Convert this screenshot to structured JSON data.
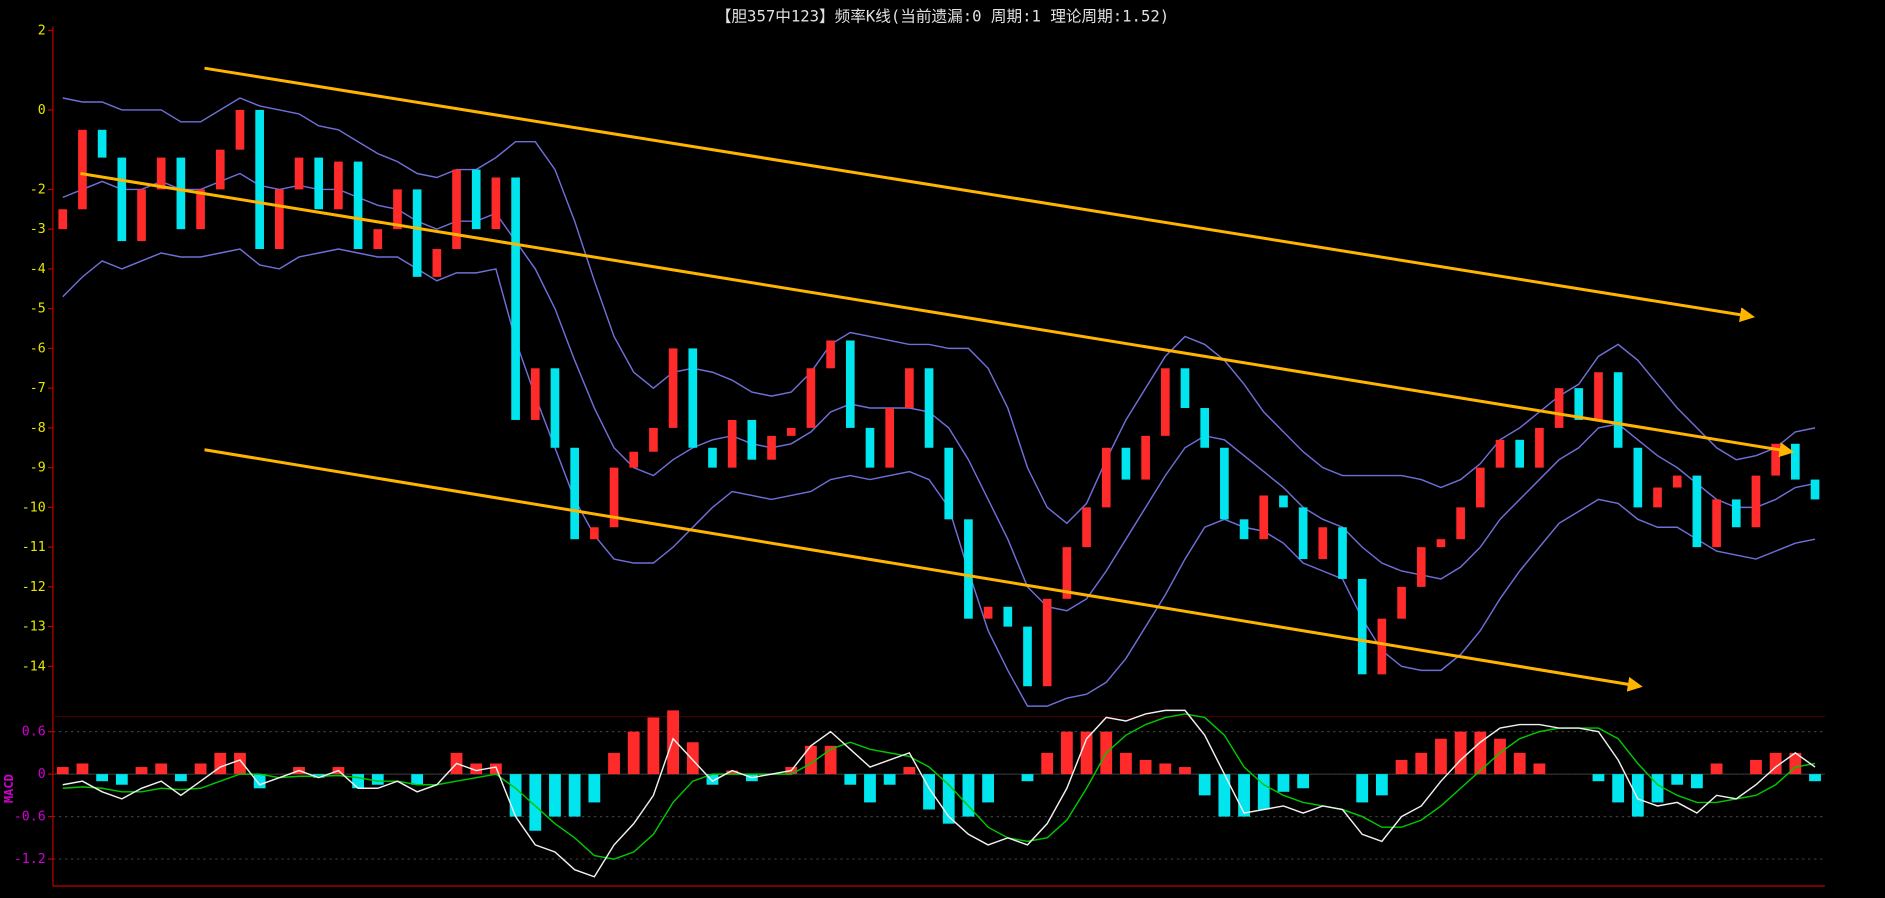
{
  "chart_data": [
    {
      "type": "candlestick",
      "title": "【胆357中123】频率K线(当前遗漏:0 周期:1 理论周期:1.52)",
      "ylim": [
        -15.2,
        2.1
      ],
      "yticks": [
        2,
        0,
        -2,
        -3,
        -4,
        -5,
        -6,
        -7,
        -8,
        -9,
        -10,
        -11,
        -12,
        -13,
        -14
      ],
      "tick_color": "#e6e600",
      "up_color": "#ff2a2a",
      "down_color": "#00e5ee",
      "band_color": "#6f6fd8",
      "trend_color": "#ffb400",
      "open": [
        -3,
        -2.5,
        -0.5,
        -1.2,
        -3.3,
        -2,
        -1.2,
        -3,
        -2,
        -1,
        0,
        -3.5,
        -2,
        -1.2,
        -2.5,
        -1.3,
        -3.5,
        -3,
        -2,
        -4.2,
        -3.5,
        -1.5,
        -3,
        -1.7,
        -7.8,
        -6.5,
        -8.5,
        -10.8,
        -10.5,
        -9,
        -8.6,
        -8,
        -6,
        -8.5,
        -9,
        -7.8,
        -8.8,
        -8.2,
        -8,
        -6.5,
        -5.8,
        -8,
        -9,
        -7.5,
        -6.5,
        -8.5,
        -10.3,
        -12.8,
        -12.5,
        -13,
        -14.5,
        -12.3,
        -11,
        -10,
        -8.5,
        -9.3,
        -8.2,
        -6.5,
        -7.5,
        -8.5,
        -10.3,
        -10.8,
        -9.7,
        -10,
        -11.3,
        -10.5,
        -11.8,
        -14.2,
        -12.8,
        -12,
        -11,
        -10.8,
        -10,
        -9,
        -8.3,
        -9,
        -8,
        -7,
        -7.8,
        -6.6,
        -8.5,
        -10,
        -9.5,
        -9.2,
        -11,
        -9.8,
        -10.5,
        -9.2,
        -8.4,
        -9.3
      ],
      "close": [
        -2.5,
        -0.5,
        -1.2,
        -3.3,
        -2,
        -1.2,
        -3,
        -2,
        -1,
        0,
        -3.5,
        -2,
        -1.2,
        -2.5,
        -1.3,
        -3.5,
        -3,
        -2,
        -4.2,
        -3.5,
        -1.5,
        -3,
        -1.7,
        -7.8,
        -6.5,
        -8.5,
        -10.8,
        -10.5,
        -9,
        -8.6,
        -8,
        -6,
        -8.5,
        -9,
        -7.8,
        -8.8,
        -8.2,
        -8,
        -6.5,
        -5.8,
        -8,
        -9,
        -7.5,
        -6.5,
        -8.5,
        -10.3,
        -12.8,
        -12.5,
        -13,
        -14.5,
        -12.3,
        -11,
        -10,
        -8.5,
        -9.3,
        -8.2,
        -6.5,
        -7.5,
        -8.5,
        -10.3,
        -10.8,
        -9.7,
        -10,
        -11.3,
        -10.5,
        -11.8,
        -14.2,
        -12.8,
        -12,
        -11,
        -10.8,
        -10,
        -9,
        -8.3,
        -9,
        -8,
        -7,
        -7.8,
        -6.6,
        -8.5,
        -10,
        -9.5,
        -9.2,
        -11,
        -9.8,
        -10.5,
        -9.2,
        -8.4,
        -9.3,
        -9.8
      ],
      "upper": [
        0.3,
        0.2,
        0.2,
        0,
        0,
        0,
        -0.3,
        -0.3,
        0,
        0.3,
        0.1,
        0,
        -0.1,
        -0.4,
        -0.5,
        -0.8,
        -1.1,
        -1.3,
        -1.6,
        -1.7,
        -1.5,
        -1.5,
        -1.2,
        -0.8,
        -0.8,
        -1.5,
        -2.8,
        -4.3,
        -5.7,
        -6.6,
        -7,
        -6.6,
        -6.5,
        -6.6,
        -6.8,
        -7.1,
        -7.2,
        -7.1,
        -6.6,
        -5.9,
        -5.6,
        -5.7,
        -5.8,
        -5.9,
        -5.9,
        -6,
        -6,
        -6.5,
        -7.5,
        -9,
        -10,
        -10.4,
        -9.9,
        -8.8,
        -7.8,
        -7,
        -6.2,
        -5.7,
        -5.9,
        -6.3,
        -6.9,
        -7.6,
        -8.1,
        -8.6,
        -9,
        -9.2,
        -9.2,
        -9.2,
        -9.2,
        -9.3,
        -9.5,
        -9.3,
        -8.9,
        -8.3,
        -8,
        -7.6,
        -7.2,
        -6.9,
        -6.2,
        -5.9,
        -6.3,
        -6.9,
        -7.5,
        -8,
        -8.5,
        -8.8,
        -8.7,
        -8.5,
        -8.1,
        -8
      ],
      "middle": [
        -2.2,
        -2,
        -1.8,
        -2,
        -2,
        -1.8,
        -2,
        -2,
        -1.8,
        -1.6,
        -1.9,
        -2,
        -1.9,
        -2,
        -2,
        -2.2,
        -2.4,
        -2.5,
        -2.8,
        -3,
        -2.8,
        -2.8,
        -2.6,
        -3.3,
        -4,
        -5,
        -6.3,
        -7.5,
        -8.5,
        -9,
        -9.2,
        -8.8,
        -8.5,
        -8.3,
        -8.2,
        -8.4,
        -8.5,
        -8.4,
        -8.1,
        -7.6,
        -7.4,
        -7.5,
        -7.5,
        -7.5,
        -7.6,
        -8,
        -8.8,
        -9.8,
        -10.8,
        -12,
        -12.5,
        -12.6,
        -12.3,
        -11.6,
        -10.8,
        -10,
        -9.2,
        -8.5,
        -8.2,
        -8.3,
        -8.7,
        -9.1,
        -9.5,
        -10,
        -10.3,
        -10.5,
        -11,
        -11.4,
        -11.6,
        -11.7,
        -11.8,
        -11.5,
        -11,
        -10.3,
        -9.8,
        -9.3,
        -8.8,
        -8.5,
        -8,
        -7.9,
        -8.3,
        -8.7,
        -9,
        -9.4,
        -9.8,
        -10,
        -10,
        -9.8,
        -9.5,
        -9.4
      ],
      "lower": [
        -4.7,
        -4.2,
        -3.8,
        -4,
        -3.8,
        -3.6,
        -3.7,
        -3.7,
        -3.6,
        -3.5,
        -3.9,
        -4,
        -3.7,
        -3.6,
        -3.5,
        -3.6,
        -3.7,
        -3.7,
        -4,
        -4.3,
        -4.1,
        -4.1,
        -4,
        -5.8,
        -7.2,
        -8.5,
        -9.8,
        -10.7,
        -11.3,
        -11.4,
        -11.4,
        -11,
        -10.5,
        -10,
        -9.6,
        -9.7,
        -9.8,
        -9.7,
        -9.6,
        -9.3,
        -9.2,
        -9.3,
        -9.2,
        -9.1,
        -9.3,
        -10,
        -11.6,
        -13.1,
        -14.1,
        -15,
        -15,
        -14.8,
        -14.7,
        -14.4,
        -13.8,
        -13,
        -12.2,
        -11.3,
        -10.5,
        -10.3,
        -10.5,
        -10.6,
        -10.9,
        -11.4,
        -11.6,
        -11.8,
        -12.8,
        -13.6,
        -14,
        -14.1,
        -14.1,
        -13.7,
        -13.1,
        -12.3,
        -11.6,
        -11,
        -10.4,
        -10.1,
        -9.8,
        -9.9,
        -10.3,
        -10.5,
        -10.5,
        -10.8,
        -11.1,
        -11.2,
        -11.3,
        -11.1,
        -10.9,
        -10.8
      ],
      "trend_lines": [
        {
          "x": [
            7.2,
            85.8
          ],
          "y": [
            1.05,
            -5.2
          ]
        },
        {
          "x": [
            0.9,
            87.8
          ],
          "y": [
            -1.6,
            -8.6
          ]
        },
        {
          "x": [
            7.2,
            80.1
          ],
          "y": [
            -8.55,
            -14.5
          ]
        }
      ]
    },
    {
      "type": "macd",
      "ylabel": "MACD",
      "ylim": [
        -1.58,
        0.78
      ],
      "yticks": [
        0.6,
        0,
        -0.6,
        -1.2
      ],
      "grid": true,
      "tick_color": "#d000d0",
      "dif_color": "#f0f0f0",
      "dea_color": "#00c800",
      "up_color": "#ff2a2a",
      "down_color": "#00e5ee",
      "dif": [
        -0.15,
        -0.1,
        -0.25,
        -0.35,
        -0.2,
        -0.1,
        -0.3,
        -0.1,
        0.1,
        0.2,
        -0.15,
        -0.05,
        0.05,
        -0.05,
        0.05,
        -0.2,
        -0.2,
        -0.1,
        -0.25,
        -0.15,
        0.15,
        0.05,
        0.1,
        -0.6,
        -1.0,
        -1.1,
        -1.35,
        -1.45,
        -1.0,
        -0.7,
        -0.3,
        0.5,
        0.2,
        -0.1,
        0.05,
        -0.05,
        0,
        0.05,
        0.4,
        0.6,
        0.35,
        0.1,
        0.2,
        0.3,
        -0.2,
        -0.6,
        -0.85,
        -1.0,
        -0.9,
        -1.0,
        -0.7,
        -0.2,
        0.5,
        0.8,
        0.75,
        0.85,
        0.9,
        0.9,
        0.55,
        0,
        -0.55,
        -0.5,
        -0.45,
        -0.55,
        -0.45,
        -0.5,
        -0.85,
        -0.95,
        -0.6,
        -0.45,
        -0.1,
        0.2,
        0.45,
        0.65,
        0.7,
        0.7,
        0.65,
        0.65,
        0.6,
        0.2,
        -0.35,
        -0.45,
        -0.4,
        -0.55,
        -0.3,
        -0.35,
        -0.15,
        0.1,
        0.3,
        0.1
      ],
      "dea": [
        -0.2,
        -0.18,
        -0.2,
        -0.25,
        -0.25,
        -0.2,
        -0.22,
        -0.2,
        -0.1,
        0,
        0,
        -0.05,
        -0.03,
        -0.03,
        -0.02,
        -0.05,
        -0.1,
        -0.1,
        -0.15,
        -0.15,
        -0.1,
        -0.05,
        0,
        -0.2,
        -0.45,
        -0.7,
        -0.9,
        -1.15,
        -1.2,
        -1.1,
        -0.85,
        -0.4,
        -0.1,
        0,
        0,
        0,
        0,
        0,
        0.15,
        0.35,
        0.45,
        0.35,
        0.3,
        0.25,
        0.1,
        -0.15,
        -0.45,
        -0.75,
        -0.9,
        -0.95,
        -0.9,
        -0.65,
        -0.2,
        0.3,
        0.55,
        0.7,
        0.8,
        0.85,
        0.8,
        0.55,
        0.1,
        -0.15,
        -0.3,
        -0.4,
        -0.45,
        -0.5,
        -0.6,
        -0.75,
        -0.75,
        -0.65,
        -0.45,
        -0.2,
        0.05,
        0.3,
        0.5,
        0.6,
        0.65,
        0.65,
        0.65,
        0.5,
        0.15,
        -0.15,
        -0.3,
        -0.4,
        -0.4,
        -0.35,
        -0.3,
        -0.15,
        0.1,
        0.15
      ],
      "hist": [
        0.1,
        0.15,
        -0.1,
        -0.15,
        0.1,
        0.15,
        -0.1,
        0.15,
        0.3,
        0.3,
        -0.2,
        0,
        0.1,
        -0.05,
        0.1,
        -0.2,
        -0.15,
        0,
        -0.15,
        0,
        0.3,
        0.15,
        0.15,
        -0.6,
        -0.8,
        -0.6,
        -0.6,
        -0.4,
        0.3,
        0.6,
        0.8,
        0.9,
        0.45,
        -0.15,
        0.05,
        -0.1,
        0,
        0.1,
        0.4,
        0.4,
        -0.15,
        -0.4,
        -0.15,
        0.1,
        -0.5,
        -0.7,
        -0.6,
        -0.4,
        0,
        -0.1,
        0.3,
        0.6,
        0.6,
        0.6,
        0.3,
        0.2,
        0.15,
        0.1,
        -0.3,
        -0.6,
        -0.6,
        -0.5,
        -0.25,
        -0.2,
        0,
        0,
        -0.4,
        -0.3,
        0.2,
        0.3,
        0.5,
        0.6,
        0.6,
        0.5,
        0.3,
        0.15,
        0,
        0,
        -0.1,
        -0.4,
        -0.6,
        -0.4,
        -0.15,
        -0.2,
        0.15,
        0,
        0.2,
        0.3,
        0.3,
        -0.1
      ]
    }
  ]
}
